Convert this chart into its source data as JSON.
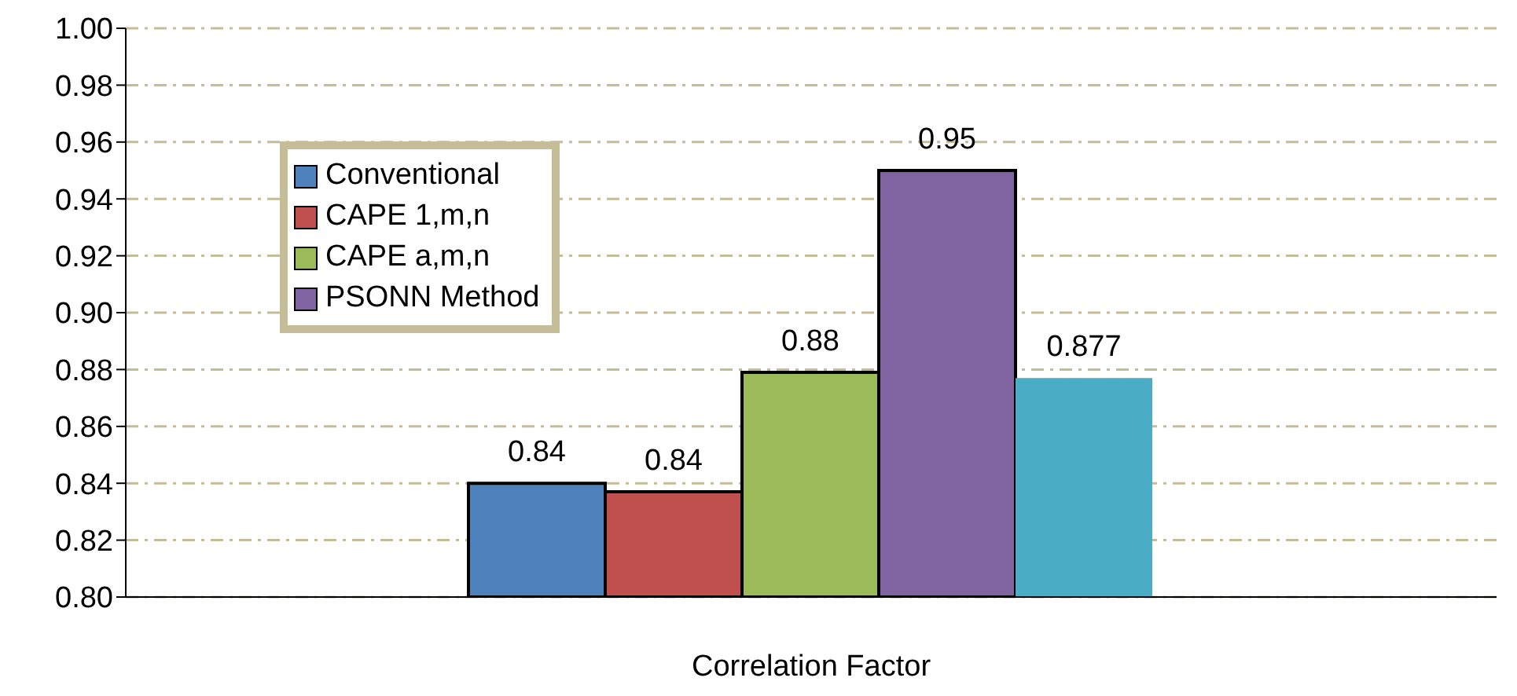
{
  "chart_data": {
    "type": "bar",
    "xlabel": "Correlation Factor",
    "categories": [
      null
    ],
    "series": [
      {
        "name": "Conventional",
        "color": "#4f81bd",
        "values": [
          0.84
        ],
        "value_labels": [
          "0.84"
        ]
      },
      {
        "name": "CAPE 1,m,n",
        "color": "#c0504d",
        "values": [
          0.837
        ],
        "value_labels": [
          "0.84"
        ]
      },
      {
        "name": "CAPE a,m,n",
        "color": "#9bbb59",
        "values": [
          0.879
        ],
        "value_labels": [
          "0.88"
        ]
      },
      {
        "name": "PSONN Method",
        "color": "#8064a2",
        "values": [
          0.95
        ],
        "value_labels": [
          "0.95"
        ]
      },
      {
        "color": "#4bacc6",
        "values": [
          0.877
        ],
        "value_labels": [
          "0.877"
        ]
      }
    ],
    "ylim": [
      0.8,
      1.0
    ],
    "yticks": [
      {
        "value": 0.8,
        "label": "0.80"
      },
      {
        "value": 0.82,
        "label": "0.82"
      },
      {
        "value": 0.84,
        "label": "0.84"
      },
      {
        "value": 0.86,
        "label": "0.86"
      },
      {
        "value": 0.88,
        "label": "0.88"
      },
      {
        "value": 0.9,
        "label": "0.90"
      },
      {
        "value": 0.92,
        "label": "0.92"
      },
      {
        "value": 0.94,
        "label": "0.94"
      },
      {
        "value": 0.96,
        "label": "0.96"
      },
      {
        "value": 0.98,
        "label": "0.98"
      },
      {
        "value": 1.0,
        "label": "1.00"
      }
    ],
    "grid": "y",
    "legend": "top left"
  }
}
